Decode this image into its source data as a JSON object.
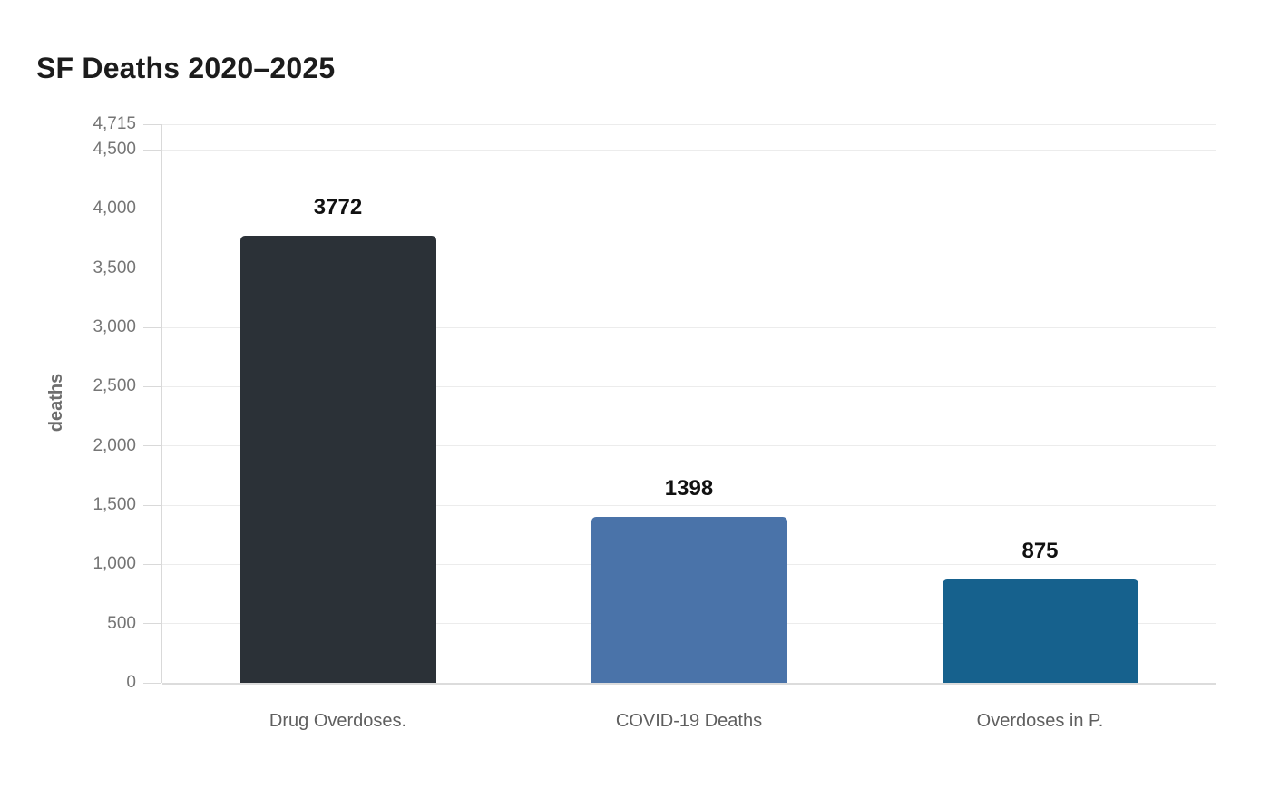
{
  "title": "SF Deaths 2020–2025",
  "chart_data": {
    "type": "bar",
    "title": "SF Deaths 2020–2025",
    "categories": [
      "Drug Overdoses.",
      "COVID-19 Deaths",
      "Overdoses in P."
    ],
    "values": [
      3772,
      1398,
      875
    ],
    "value_labels": [
      "3772",
      "1398",
      "875"
    ],
    "bar_colors": [
      "#2b3137",
      "#4a73a9",
      "#16618d"
    ],
    "xlabel": "",
    "ylabel": "deaths",
    "ylim": [
      0,
      4715
    ],
    "yticks": [
      0,
      500,
      1000,
      1500,
      2000,
      2500,
      3000,
      3500,
      4000,
      4500,
      4715
    ],
    "ytick_labels": [
      "0",
      "500",
      "1,000",
      "1,500",
      "2,000",
      "2,500",
      "3,000",
      "3,500",
      "4,000",
      "4,500",
      "4,715"
    ],
    "grid": "horizontal",
    "legend": "none"
  },
  "colors": {
    "background": "#ffffff",
    "title_text": "#1c1c1c",
    "value_label_text": "#111111",
    "tick_label_text": "#757575",
    "category_label_text": "#5f5f5f",
    "axis_title_text": "#6e6e6e",
    "gridline": "#ececec",
    "axis_line": "#d9d9d9",
    "baseline": "#dcdcdc"
  }
}
